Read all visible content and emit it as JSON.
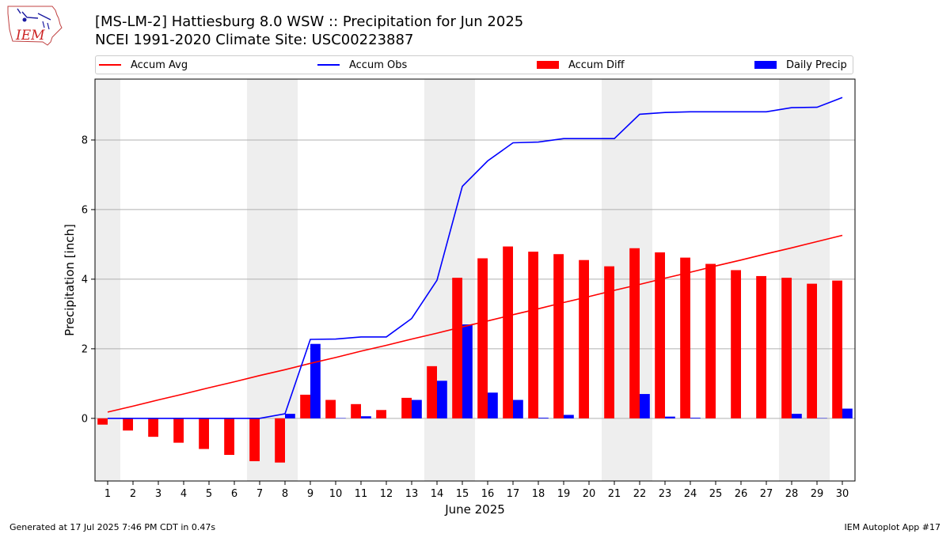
{
  "header": {
    "logo_text": "IEM",
    "title_line1": "[MS-LM-2] Hattiesburg 8.0 WSW :: Precipitation for Jun 2025",
    "title_line2": "NCEI 1991-2020 Climate Site: USC00223887"
  },
  "legend": {
    "placement": "top",
    "items": [
      {
        "label": "Accum Avg",
        "kind": "line",
        "color": "#ff0000"
      },
      {
        "label": "Accum Obs",
        "kind": "line",
        "color": "#0000ff"
      },
      {
        "label": "Accum Diff",
        "kind": "bar",
        "color": "#ff0000"
      },
      {
        "label": "Daily Precip",
        "kind": "bar",
        "color": "#0000ff"
      }
    ]
  },
  "chart_data": {
    "type": "bar",
    "xlabel": "June 2025",
    "ylabel": "Precipitation [inch]",
    "ylim": [
      -1.8,
      9.75
    ],
    "yticks": [
      0,
      2,
      4,
      6,
      8
    ],
    "grid": "horizontal",
    "weekend_shading_color": "#eeeeee",
    "weekend_days": [
      1,
      7,
      8,
      14,
      15,
      21,
      22,
      28,
      29
    ],
    "days": [
      1,
      2,
      3,
      4,
      5,
      6,
      7,
      8,
      9,
      10,
      11,
      12,
      13,
      14,
      15,
      16,
      17,
      18,
      19,
      20,
      21,
      22,
      23,
      24,
      25,
      26,
      27,
      28,
      29,
      30
    ],
    "series": [
      {
        "name": "Accum Avg",
        "kind": "line",
        "color": "#ff0000",
        "values": [
          0.18,
          0.35,
          0.53,
          0.7,
          0.88,
          1.05,
          1.23,
          1.4,
          1.58,
          1.75,
          1.93,
          2.1,
          2.28,
          2.45,
          2.63,
          2.8,
          2.98,
          3.15,
          3.33,
          3.5,
          3.68,
          3.85,
          4.03,
          4.2,
          4.38,
          4.55,
          4.73,
          4.9,
          5.08,
          5.26
        ]
      },
      {
        "name": "Accum Obs",
        "kind": "line",
        "color": "#0000ff",
        "values": [
          0.0,
          0.0,
          0.0,
          0.0,
          0.0,
          0.0,
          0.0,
          0.13,
          2.27,
          2.28,
          2.34,
          2.34,
          2.87,
          3.97,
          6.67,
          7.4,
          7.92,
          7.94,
          8.04,
          8.04,
          8.04,
          8.74,
          8.79,
          8.81,
          8.81,
          8.81,
          8.81,
          8.93,
          8.94,
          9.22
        ]
      },
      {
        "name": "Accum Diff",
        "kind": "bar",
        "color": "#ff0000",
        "values": [
          -0.18,
          -0.35,
          -0.53,
          -0.7,
          -0.88,
          -1.05,
          -1.23,
          -1.27,
          0.68,
          0.53,
          0.41,
          0.24,
          0.59,
          1.5,
          4.04,
          4.6,
          4.94,
          4.79,
          4.72,
          4.55,
          4.37,
          4.89,
          4.77,
          4.62,
          4.44,
          4.26,
          4.09,
          4.04,
          3.87,
          3.96
        ]
      },
      {
        "name": "Daily Precip",
        "kind": "bar",
        "color": "#0000ff",
        "values": [
          0.0,
          0.0,
          0.0,
          0.0,
          0.0,
          0.0,
          0.0,
          0.13,
          2.14,
          0.01,
          0.06,
          0.0,
          0.53,
          1.08,
          2.7,
          0.74,
          0.53,
          0.02,
          0.1,
          0.0,
          0.0,
          0.7,
          0.05,
          0.02,
          0.0,
          0.0,
          0.0,
          0.13,
          0.01,
          0.28
        ]
      }
    ]
  },
  "footer": {
    "left": "Generated at 17 Jul 2025 7:46 PM CDT in 0.47s",
    "right": "IEM Autoplot App #17"
  }
}
